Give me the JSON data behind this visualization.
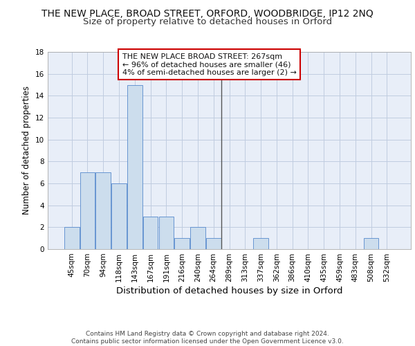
{
  "title": "THE NEW PLACE, BROAD STREET, ORFORD, WOODBRIDGE, IP12 2NQ",
  "subtitle": "Size of property relative to detached houses in Orford",
  "xlabel": "Distribution of detached houses by size in Orford",
  "ylabel": "Number of detached properties",
  "categories": [
    "45sqm",
    "70sqm",
    "94sqm",
    "118sqm",
    "143sqm",
    "167sqm",
    "191sqm",
    "216sqm",
    "240sqm",
    "264sqm",
    "289sqm",
    "313sqm",
    "337sqm",
    "362sqm",
    "386sqm",
    "410sqm",
    "435sqm",
    "459sqm",
    "483sqm",
    "508sqm",
    "532sqm"
  ],
  "values": [
    2,
    7,
    7,
    6,
    15,
    3,
    3,
    1,
    2,
    1,
    0,
    0,
    1,
    0,
    0,
    0,
    0,
    0,
    0,
    1,
    0
  ],
  "bar_color": "#ccdded",
  "bar_edge_color": "#5588cc",
  "vline_x": 9.5,
  "vline_color": "#555555",
  "annotation_text": "THE NEW PLACE BROAD STREET: 267sqm\n← 96% of detached houses are smaller (46)\n4% of semi-detached houses are larger (2) →",
  "annotation_box_facecolor": "#ffffff",
  "annotation_box_edgecolor": "#cc0000",
  "ylim": [
    0,
    18
  ],
  "yticks": [
    0,
    2,
    4,
    6,
    8,
    10,
    12,
    14,
    16,
    18
  ],
  "grid_color": "#c0cce0",
  "background_color": "#e8eef8",
  "footer_text": "Contains HM Land Registry data © Crown copyright and database right 2024.\nContains public sector information licensed under the Open Government Licence v3.0.",
  "title_fontsize": 10,
  "subtitle_fontsize": 9.5,
  "xlabel_fontsize": 9.5,
  "ylabel_fontsize": 8.5,
  "tick_fontsize": 7.5,
  "annotation_fontsize": 8,
  "footer_fontsize": 6.5
}
